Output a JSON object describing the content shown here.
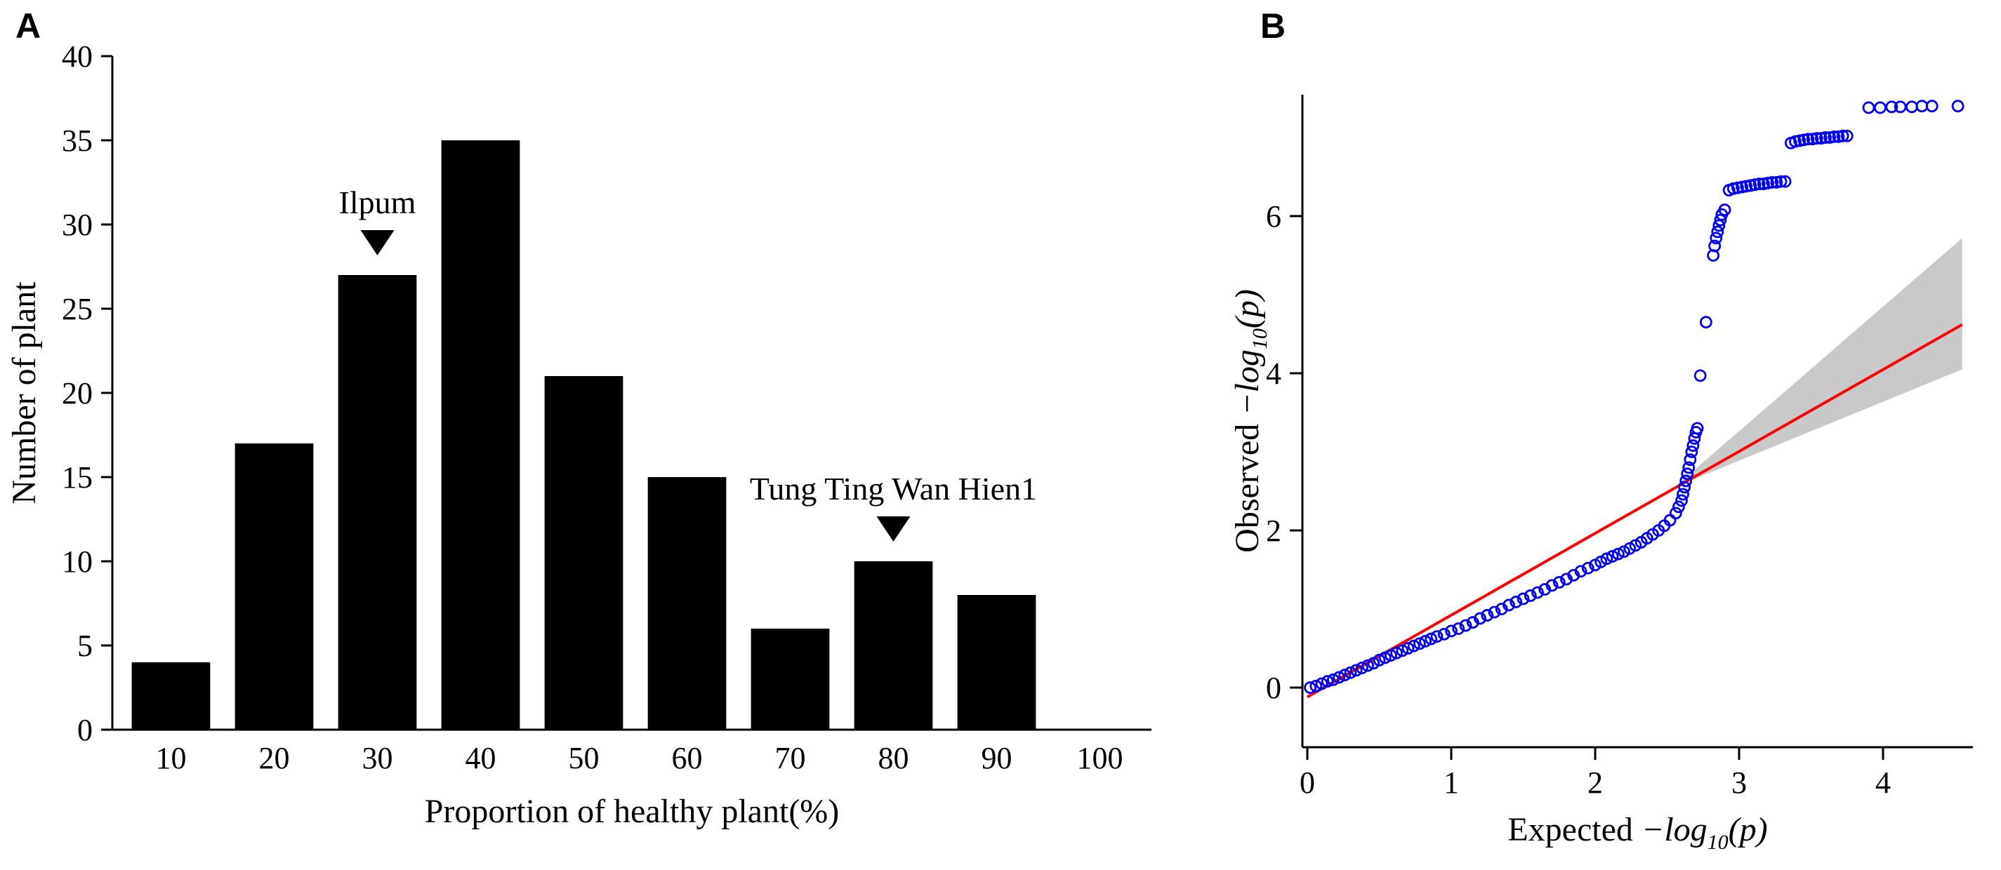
{
  "figure": {
    "background": "#ffffff",
    "panels": [
      {
        "label": "A"
      },
      {
        "label": "B"
      }
    ]
  },
  "chart_data": [
    {
      "type": "bar",
      "panel": "A",
      "title": "",
      "xlabel": "Proportion of healthy plant(%)",
      "ylabel": "Number of plant",
      "categories": [
        10,
        20,
        30,
        40,
        50,
        60,
        70,
        80,
        90,
        100
      ],
      "values": [
        4,
        17,
        27,
        35,
        21,
        15,
        6,
        10,
        8,
        0
      ],
      "ylim": [
        0,
        40
      ],
      "yticks": [
        0,
        5,
        10,
        15,
        20,
        25,
        30,
        35,
        40
      ],
      "bar_color": "#000000",
      "grid": false,
      "annotations": [
        {
          "text": "Ilpum",
          "category": 30,
          "marker": "filled-down-triangle"
        },
        {
          "text": "Tung Ting Wan Hien1",
          "category": 80,
          "marker": "filled-down-triangle"
        }
      ]
    },
    {
      "type": "scatter",
      "panel": "B",
      "title": "",
      "xlabel_segments": [
        {
          "t": "Expected "
        },
        {
          "t": "−",
          "i": 1
        },
        {
          "t": "log",
          "i": 1
        },
        {
          "t": "10",
          "i": 1,
          "sub": 1
        },
        {
          "t": "(p)",
          "i": 1
        }
      ],
      "ylabel_segments": [
        {
          "t": "Observed "
        },
        {
          "t": "−",
          "i": 1
        },
        {
          "t": "log",
          "i": 1
        },
        {
          "t": "10",
          "i": 1,
          "sub": 1
        },
        {
          "t": "(p)",
          "i": 1
        }
      ],
      "xlim": [
        0,
        4.6
      ],
      "ylim": [
        -0.3,
        7.6
      ],
      "xticks": [
        0,
        1,
        2,
        3,
        4
      ],
      "yticks": [
        0,
        2,
        4,
        6
      ],
      "grid": false,
      "point_color": "#0000ee",
      "line_color": "#ff0000",
      "band_color": "#bfbfbf",
      "identity_line": {
        "x": [
          0,
          4.55
        ],
        "y": [
          -0.12,
          4.62
        ]
      },
      "confidence_band": [
        [
          2.55,
          2.55
        ],
        [
          4.55,
          5.72
        ],
        [
          4.55,
          4.05
        ]
      ],
      "points": [
        [
          0.02,
          0.0
        ],
        [
          0.06,
          0.02
        ],
        [
          0.1,
          0.05
        ],
        [
          0.14,
          0.08
        ],
        [
          0.18,
          0.1
        ],
        [
          0.22,
          0.13
        ],
        [
          0.26,
          0.16
        ],
        [
          0.3,
          0.19
        ],
        [
          0.34,
          0.22
        ],
        [
          0.38,
          0.25
        ],
        [
          0.42,
          0.28
        ],
        [
          0.46,
          0.31
        ],
        [
          0.5,
          0.35
        ],
        [
          0.54,
          0.38
        ],
        [
          0.58,
          0.41
        ],
        [
          0.62,
          0.44
        ],
        [
          0.66,
          0.47
        ],
        [
          0.7,
          0.5
        ],
        [
          0.74,
          0.53
        ],
        [
          0.78,
          0.56
        ],
        [
          0.82,
          0.59
        ],
        [
          0.86,
          0.62
        ],
        [
          0.9,
          0.65
        ],
        [
          0.95,
          0.68
        ],
        [
          1.0,
          0.72
        ],
        [
          1.05,
          0.75
        ],
        [
          1.1,
          0.79
        ],
        [
          1.15,
          0.83
        ],
        [
          1.2,
          0.88
        ],
        [
          1.25,
          0.92
        ],
        [
          1.3,
          0.96
        ],
        [
          1.35,
          1.0
        ],
        [
          1.4,
          1.05
        ],
        [
          1.45,
          1.09
        ],
        [
          1.5,
          1.13
        ],
        [
          1.55,
          1.17
        ],
        [
          1.6,
          1.21
        ],
        [
          1.65,
          1.25
        ],
        [
          1.7,
          1.3
        ],
        [
          1.75,
          1.34
        ],
        [
          1.8,
          1.38
        ],
        [
          1.85,
          1.43
        ],
        [
          1.9,
          1.48
        ],
        [
          1.95,
          1.52
        ],
        [
          2.0,
          1.56
        ],
        [
          2.04,
          1.6
        ],
        [
          2.08,
          1.64
        ],
        [
          2.12,
          1.67
        ],
        [
          2.16,
          1.7
        ],
        [
          2.2,
          1.73
        ],
        [
          2.24,
          1.77
        ],
        [
          2.28,
          1.81
        ],
        [
          2.32,
          1.85
        ],
        [
          2.36,
          1.9
        ],
        [
          2.4,
          1.95
        ],
        [
          2.44,
          2.0
        ],
        [
          2.48,
          2.06
        ],
        [
          2.52,
          2.13
        ],
        [
          2.56,
          2.22
        ],
        [
          2.58,
          2.3
        ],
        [
          2.6,
          2.38
        ],
        [
          2.61,
          2.46
        ],
        [
          2.62,
          2.55
        ],
        [
          2.63,
          2.63
        ],
        [
          2.64,
          2.72
        ],
        [
          2.65,
          2.8
        ],
        [
          2.66,
          2.9
        ],
        [
          2.67,
          3.0
        ],
        [
          2.68,
          3.08
        ],
        [
          2.69,
          3.17
        ],
        [
          2.7,
          3.25
        ],
        [
          2.71,
          3.3
        ],
        [
          2.73,
          3.97
        ],
        [
          2.77,
          4.65
        ],
        [
          2.82,
          5.5
        ],
        [
          2.83,
          5.62
        ],
        [
          2.84,
          5.72
        ],
        [
          2.85,
          5.8
        ],
        [
          2.86,
          5.88
        ],
        [
          2.87,
          5.95
        ],
        [
          2.88,
          6.02
        ],
        [
          2.9,
          6.08
        ],
        [
          2.93,
          6.33
        ],
        [
          2.96,
          6.35
        ],
        [
          2.99,
          6.36
        ],
        [
          3.02,
          6.37
        ],
        [
          3.05,
          6.38
        ],
        [
          3.08,
          6.39
        ],
        [
          3.11,
          6.4
        ],
        [
          3.14,
          6.41
        ],
        [
          3.17,
          6.41
        ],
        [
          3.2,
          6.42
        ],
        [
          3.23,
          6.43
        ],
        [
          3.26,
          6.43
        ],
        [
          3.29,
          6.44
        ],
        [
          3.32,
          6.44
        ],
        [
          3.36,
          6.93
        ],
        [
          3.39,
          6.95
        ],
        [
          3.42,
          6.96
        ],
        [
          3.45,
          6.97
        ],
        [
          3.48,
          6.98
        ],
        [
          3.51,
          6.98
        ],
        [
          3.54,
          6.99
        ],
        [
          3.57,
          6.99
        ],
        [
          3.6,
          7.0
        ],
        [
          3.63,
          7.0
        ],
        [
          3.66,
          7.01
        ],
        [
          3.69,
          7.01
        ],
        [
          3.72,
          7.02
        ],
        [
          3.75,
          7.02
        ],
        [
          3.9,
          7.38
        ],
        [
          3.98,
          7.38
        ],
        [
          4.06,
          7.39
        ],
        [
          4.12,
          7.39
        ],
        [
          4.2,
          7.39
        ],
        [
          4.27,
          7.4
        ],
        [
          4.34,
          7.4
        ],
        [
          4.52,
          7.4
        ]
      ]
    }
  ]
}
